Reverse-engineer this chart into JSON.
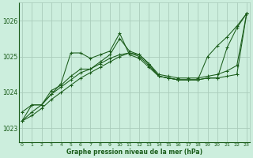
{
  "title": "Graphe pression niveau de la mer (hPa)",
  "background_color": "#cceedd",
  "grid_color": "#aaccbb",
  "line_color": "#1a5c1a",
  "x_ticks": [
    0,
    1,
    2,
    3,
    4,
    5,
    6,
    7,
    8,
    9,
    10,
    11,
    12,
    13,
    14,
    15,
    16,
    17,
    18,
    19,
    20,
    21,
    22,
    23
  ],
  "y_ticks": [
    1023,
    1024,
    1025,
    1026
  ],
  "ylim": [
    1022.6,
    1026.5
  ],
  "xlim": [
    -0.3,
    23.3
  ],
  "series": [
    [
      1023.2,
      1023.65,
      1023.65,
      1023.95,
      1024.25,
      1025.1,
      1025.1,
      1024.95,
      1025.05,
      1025.15,
      1025.65,
      1025.05,
      1024.95,
      1024.7,
      1024.45,
      1024.4,
      1024.35,
      1024.35,
      1024.35,
      1025.0,
      1025.3,
      1025.55,
      1025.85,
      1026.2
    ],
    [
      1023.45,
      1023.65,
      1023.65,
      1024.05,
      1024.2,
      1024.45,
      1024.65,
      1024.65,
      1024.85,
      1025.05,
      1025.5,
      1025.15,
      1025.05,
      1024.8,
      1024.45,
      1024.4,
      1024.35,
      1024.35,
      1024.35,
      1024.4,
      1024.4,
      1025.25,
      1025.8,
      1026.2
    ],
    [
      1023.2,
      1023.45,
      1023.65,
      1023.95,
      1024.15,
      1024.35,
      1024.55,
      1024.65,
      1024.8,
      1024.95,
      1025.05,
      1025.1,
      1025.0,
      1024.75,
      1024.45,
      1024.4,
      1024.35,
      1024.35,
      1024.35,
      1024.4,
      1024.4,
      1024.45,
      1024.5,
      1026.2
    ],
    [
      1023.2,
      1023.35,
      1023.55,
      1023.8,
      1024.0,
      1024.2,
      1024.4,
      1024.55,
      1024.7,
      1024.85,
      1025.0,
      1025.1,
      1025.05,
      1024.8,
      1024.5,
      1024.45,
      1024.4,
      1024.4,
      1024.4,
      1024.45,
      1024.5,
      1024.6,
      1024.75,
      1026.2
    ]
  ]
}
